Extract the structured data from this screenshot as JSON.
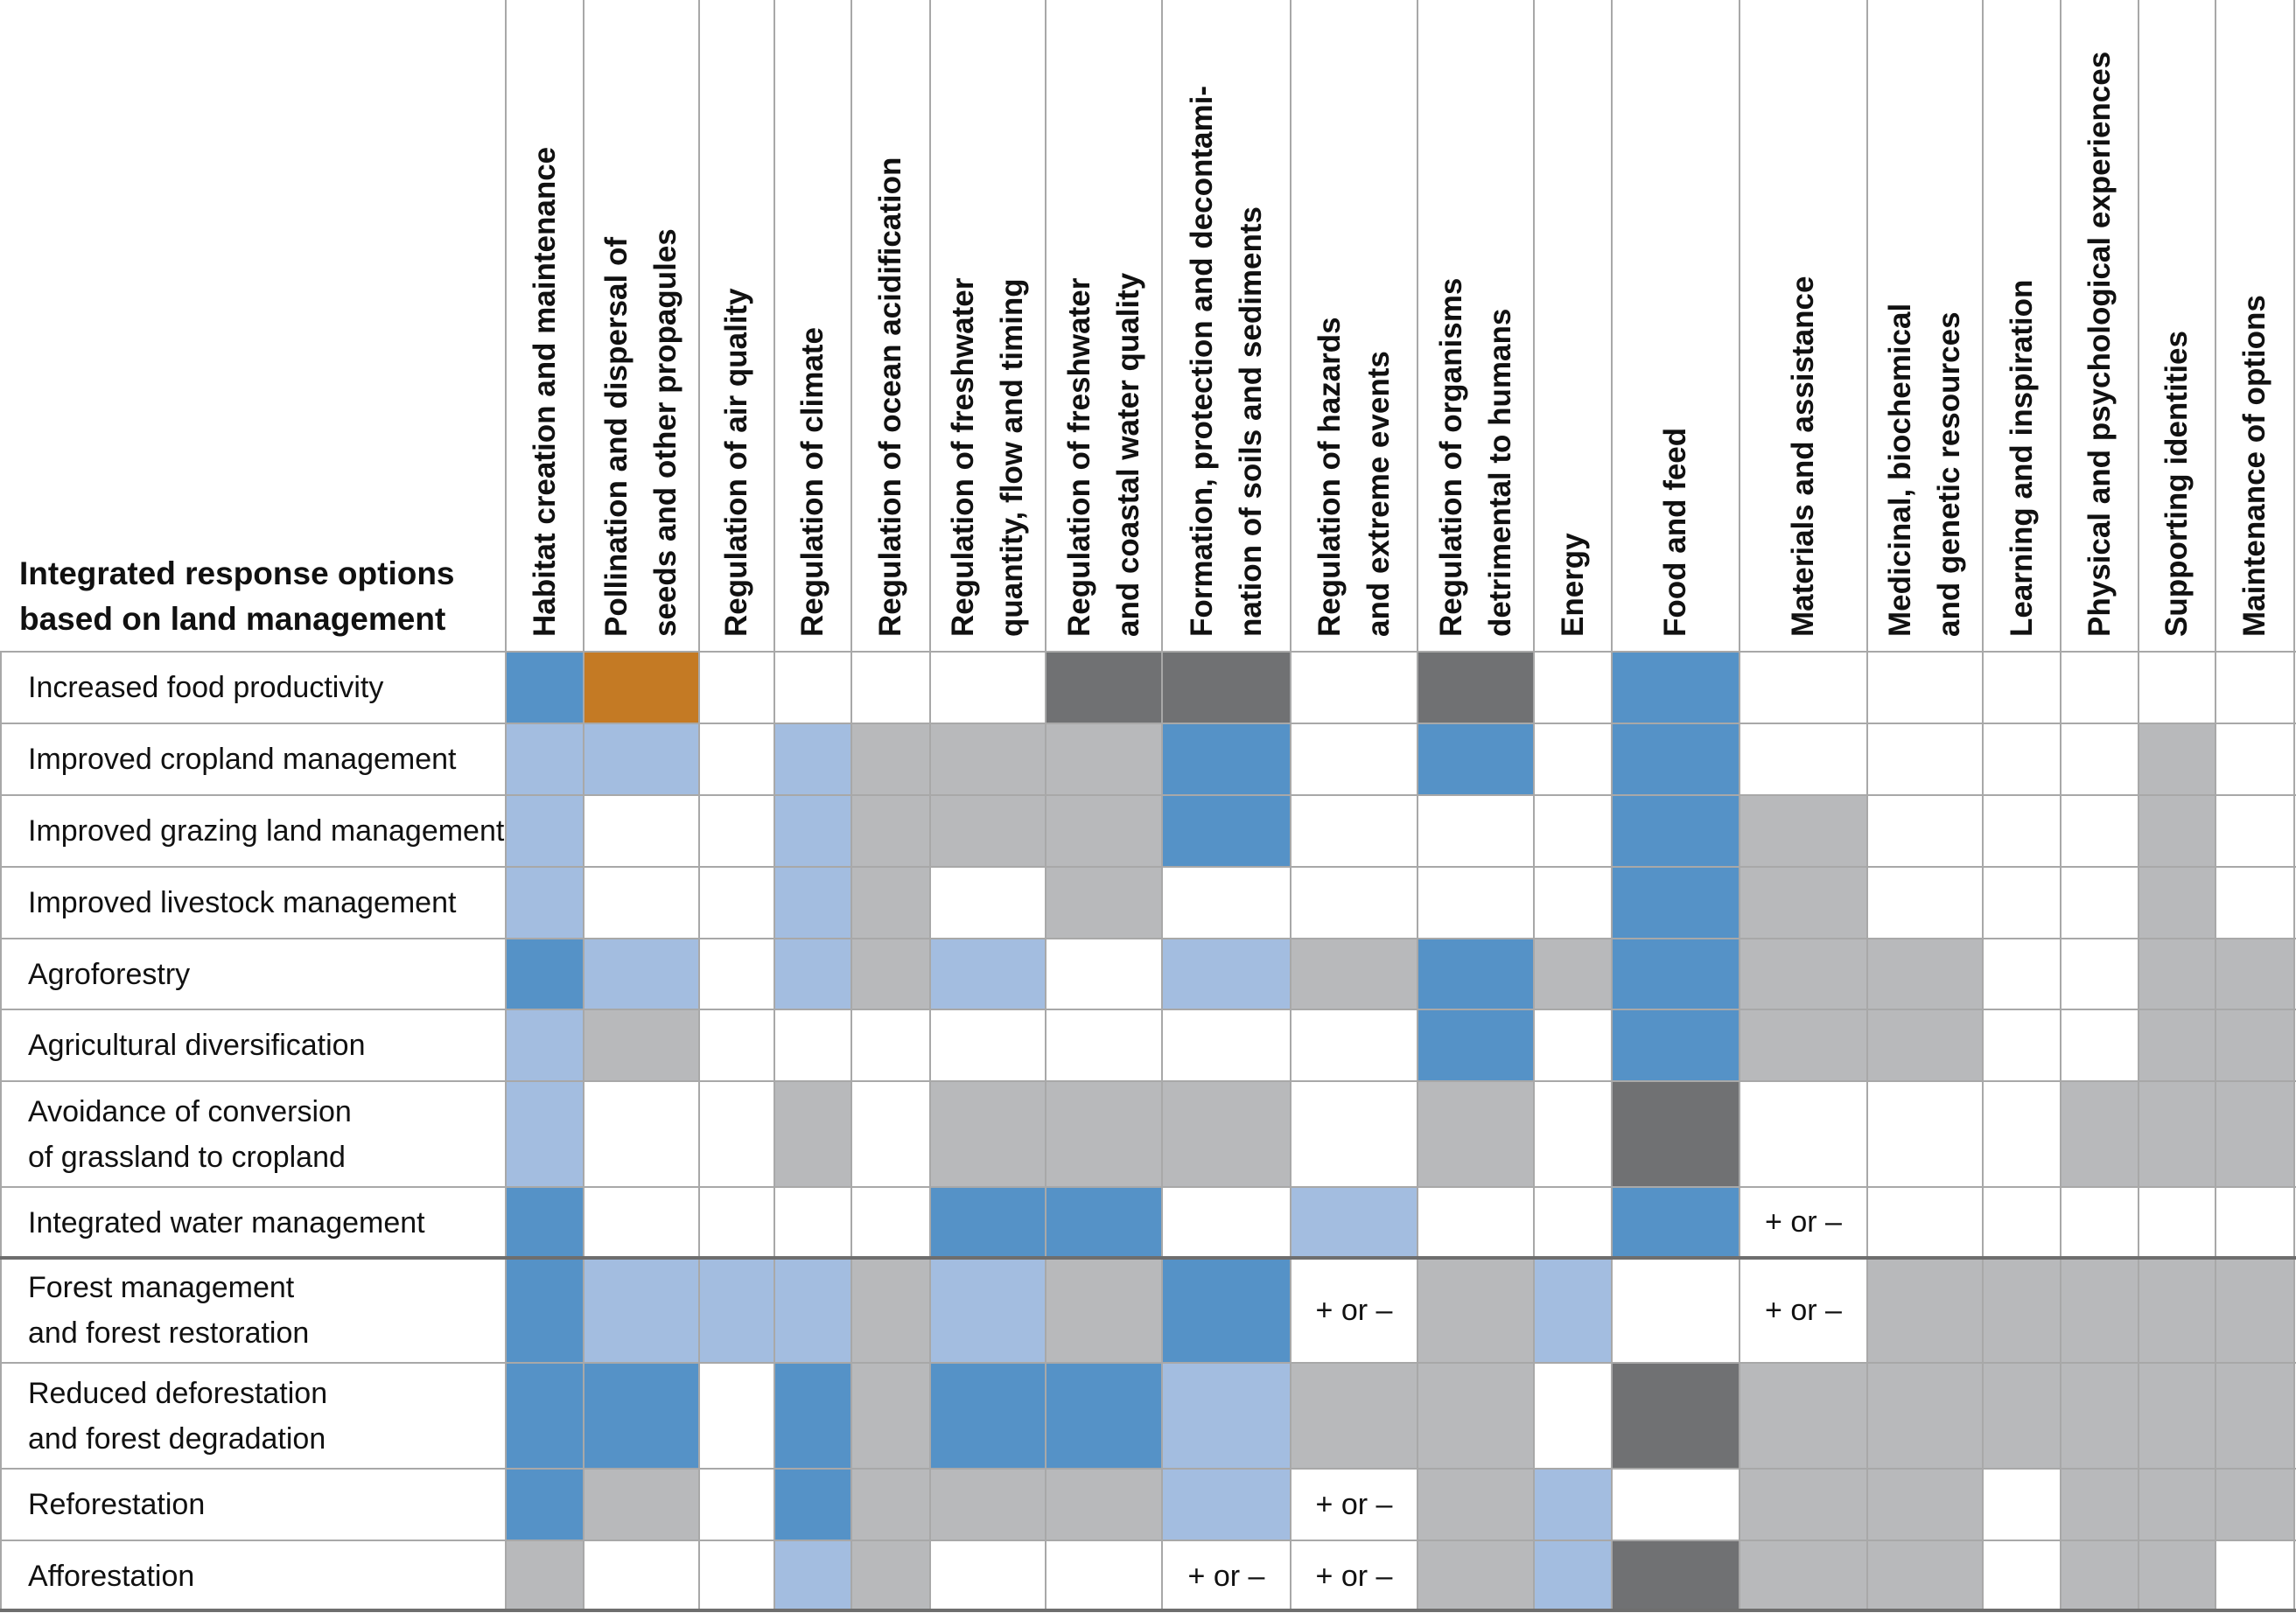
{
  "chart_data": {
    "type": "table",
    "title_lines": [
      "Integrated response options",
      "based on land management"
    ],
    "columns": [
      [
        "Habitat creation and maintenance"
      ],
      [
        "Pollination and dispersal of",
        "seeds and other propagules"
      ],
      [
        "Regulation of air quality"
      ],
      [
        "Regulation of climate"
      ],
      [
        "Regulation of ocean acidification"
      ],
      [
        "Regulation of freshwater",
        "quantity, flow and timing"
      ],
      [
        "Regulation of freshwater",
        "and coastal water quality"
      ],
      [
        "Formation, protection and decontami-",
        "nation of soils and sediments"
      ],
      [
        "Regulation of hazards",
        "and extreme events"
      ],
      [
        "Regulation of organisms",
        "detrimental to humans"
      ],
      [
        "Energy"
      ],
      [
        "Food and feed"
      ],
      [
        "Materials and assistance"
      ],
      [
        "Medicinal, biochemical",
        "and genetic resources"
      ],
      [
        "Learning and inspiration"
      ],
      [
        "Physical and psychological experiences"
      ],
      [
        "Supporting identities"
      ],
      [
        "Maintenance of options"
      ]
    ],
    "rows": [
      {
        "label": [
          "Increased food productivity"
        ],
        "cells": [
          "B",
          "O",
          "W",
          "W",
          "W",
          "W",
          "D",
          "D",
          "W",
          "D",
          "W",
          "B",
          "W",
          "W",
          "W",
          "W",
          "W",
          "W"
        ]
      },
      {
        "label": [
          "Improved cropland management"
        ],
        "cells": [
          "L",
          "L",
          "W",
          "L",
          "G",
          "G",
          "G",
          "B",
          "W",
          "B",
          "W",
          "B",
          "W",
          "W",
          "W",
          "W",
          "G",
          "W"
        ]
      },
      {
        "label": [
          "Improved grazing land management"
        ],
        "cells": [
          "L",
          "W",
          "W",
          "L",
          "G",
          "G",
          "G",
          "B",
          "W",
          "W",
          "W",
          "B",
          "G",
          "W",
          "W",
          "W",
          "G",
          "W"
        ]
      },
      {
        "label": [
          "Improved livestock management"
        ],
        "cells": [
          "L",
          "W",
          "W",
          "L",
          "G",
          "W",
          "G",
          "W",
          "W",
          "W",
          "W",
          "B",
          "G",
          "W",
          "W",
          "W",
          "G",
          "W"
        ]
      },
      {
        "label": [
          "Agroforestry"
        ],
        "cells": [
          "B",
          "L",
          "W",
          "L",
          "G",
          "L",
          "W",
          "L",
          "G",
          "B",
          "G",
          "B",
          "G",
          "G",
          "W",
          "W",
          "G",
          "G"
        ]
      },
      {
        "label": [
          "Agricultural diversification"
        ],
        "cells": [
          "L",
          "G",
          "W",
          "W",
          "W",
          "W",
          "W",
          "W",
          "W",
          "B",
          "W",
          "B",
          "G",
          "G",
          "W",
          "W",
          "G",
          "G"
        ]
      },
      {
        "label": [
          "Avoidance of conversion",
          "of grassland to cropland"
        ],
        "cells": [
          "L",
          "W",
          "W",
          "G",
          "W",
          "G",
          "G",
          "G",
          "W",
          "G",
          "W",
          "D",
          "W",
          "W",
          "W",
          "G",
          "G",
          "G"
        ]
      },
      {
        "label": [
          "Integrated water management"
        ],
        "cells": [
          "B",
          "W",
          "W",
          "W",
          "W",
          "B",
          "B",
          "W",
          "L",
          "W",
          "W",
          "B",
          "W:+ or –",
          "W",
          "W",
          "W",
          "W",
          "W"
        ]
      },
      {
        "label": [
          "Forest management",
          "and forest restoration"
        ],
        "cells": [
          "B",
          "L",
          "L",
          "L",
          "G",
          "L",
          "G",
          "B",
          "W:+ or –",
          "G",
          "L",
          "W",
          "W:+ or –",
          "G",
          "G",
          "G",
          "G",
          "G"
        ]
      },
      {
        "label": [
          "Reduced deforestation",
          "and forest degradation"
        ],
        "cells": [
          "B",
          "B",
          "W",
          "B",
          "G",
          "B",
          "B",
          "L",
          "G",
          "G",
          "W",
          "D",
          "G",
          "G",
          "G",
          "G",
          "G",
          "G"
        ]
      },
      {
        "label": [
          "Reforestation"
        ],
        "cells": [
          "B",
          "G",
          "W",
          "B",
          "G",
          "G",
          "G",
          "L",
          "W:+ or –",
          "G",
          "L",
          "W",
          "G",
          "G",
          "W",
          "G",
          "G",
          "G"
        ]
      },
      {
        "label": [
          "Afforestation"
        ],
        "cells": [
          "G",
          "W",
          "W",
          "L",
          "G",
          "W",
          "W",
          "W:+ or –",
          "W:+ or –",
          "G",
          "L",
          "D",
          "G",
          "G",
          "W",
          "G",
          "G",
          "W"
        ]
      }
    ],
    "colors": {
      "B": "#5592c7",
      "L": "#a3bde0",
      "G": "#b8b9bb",
      "D": "#707173",
      "O": "#c47a24",
      "W": "#ffffff"
    }
  }
}
